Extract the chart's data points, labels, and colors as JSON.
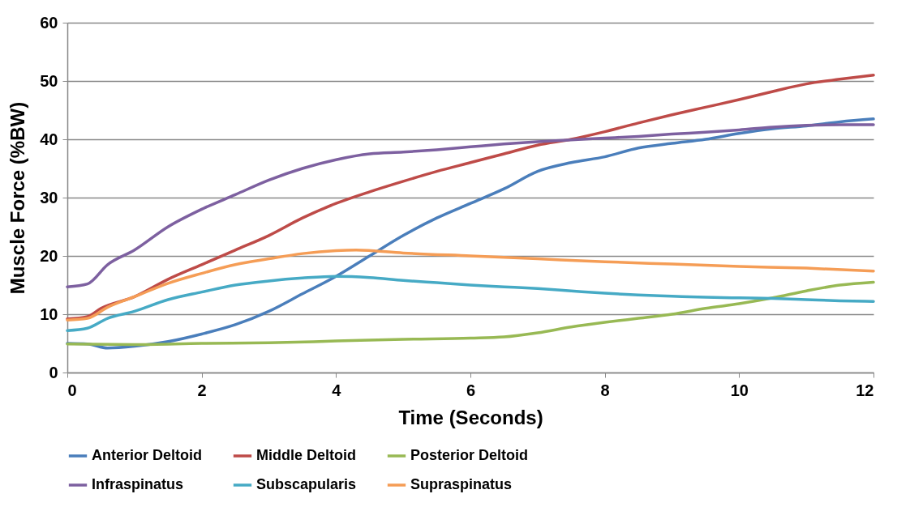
{
  "chart_data": {
    "type": "line",
    "xlabel": "Time (Seconds)",
    "ylabel": "Muscle Force (%BW)",
    "xlim": [
      0,
      12
    ],
    "xticks": [
      0,
      2,
      4,
      6,
      8,
      10,
      12
    ],
    "ylim": [
      0,
      60
    ],
    "yticks": [
      0,
      10,
      20,
      30,
      40,
      50,
      60
    ],
    "grid": "y",
    "legend": "bottom",
    "marker": "none",
    "line_style": "solid",
    "series": [
      {
        "name": "Anterior Deltoid",
        "color": "#4a7ebb",
        "x": [
          0,
          0.3,
          0.6,
          1,
          1.5,
          2,
          2.5,
          3,
          3.5,
          4,
          4.5,
          5,
          5.5,
          6,
          6.5,
          7,
          7.5,
          8,
          8.5,
          9,
          9.5,
          10,
          10.5,
          11,
          11.5,
          12
        ],
        "values": [
          5,
          4.9,
          4.2,
          4.5,
          5.3,
          6.6,
          8.2,
          10.5,
          13.5,
          16.5,
          20,
          23.5,
          26.5,
          29,
          31.5,
          34.5,
          36,
          37,
          38.5,
          39.3,
          40,
          41,
          41.8,
          42.3,
          43,
          43.5
        ]
      },
      {
        "name": "Middle Deltoid",
        "color": "#be4b48",
        "x": [
          0,
          0.3,
          0.5,
          1,
          1.5,
          2,
          2.5,
          3,
          3.5,
          4,
          4.5,
          5,
          5.5,
          6,
          6.5,
          7,
          7.5,
          8,
          8.5,
          9,
          9.5,
          10,
          10.5,
          11,
          11.5,
          12
        ],
        "values": [
          9.2,
          9.6,
          11,
          13,
          16,
          18.5,
          21,
          23.5,
          26.5,
          29,
          31,
          32.8,
          34.5,
          36,
          37.5,
          39,
          40,
          41.3,
          42.8,
          44.2,
          45.5,
          46.8,
          48.2,
          49.5,
          50.3,
          51
        ]
      },
      {
        "name": "Posterior Deltoid",
        "color": "#98b954",
        "x": [
          0,
          1,
          2,
          3,
          4,
          5,
          6,
          6.5,
          7,
          7.5,
          8,
          8.5,
          9,
          9.5,
          10,
          10.5,
          11,
          11.5,
          12
        ],
        "values": [
          4.9,
          4.8,
          5,
          5.1,
          5.4,
          5.7,
          5.9,
          6.1,
          6.8,
          7.8,
          8.6,
          9.3,
          10,
          11,
          11.8,
          12.8,
          14,
          15,
          15.5
        ]
      },
      {
        "name": "Infraspinatus",
        "color": "#7d60a0",
        "x": [
          0,
          0.3,
          0.6,
          1,
          1.5,
          2,
          2.5,
          3,
          3.5,
          4,
          4.5,
          5,
          5.5,
          6,
          6.5,
          7,
          7.5,
          8,
          8.5,
          9,
          9.5,
          10,
          10.5,
          11,
          11.5,
          12
        ],
        "values": [
          14.7,
          15.2,
          18.5,
          21,
          25,
          28,
          30.5,
          33,
          35,
          36.5,
          37.5,
          37.8,
          38.2,
          38.7,
          39.2,
          39.6,
          39.9,
          40.2,
          40.5,
          40.9,
          41.2,
          41.6,
          42.1,
          42.4,
          42.5,
          42.5
        ]
      },
      {
        "name": "Subscapularis",
        "color": "#46aac5",
        "x": [
          0,
          0.3,
          0.6,
          1,
          1.5,
          2,
          2.5,
          3,
          3.5,
          4,
          4.5,
          5,
          5.5,
          6,
          6.5,
          7,
          7.5,
          8,
          8.5,
          9,
          9.5,
          10,
          10.5,
          11,
          11.5,
          12
        ],
        "values": [
          7.2,
          7.6,
          9.3,
          10.5,
          12.5,
          13.8,
          15,
          15.7,
          16.2,
          16.5,
          16.3,
          15.8,
          15.4,
          15,
          14.7,
          14.4,
          14,
          13.6,
          13.3,
          13.1,
          12.9,
          12.8,
          12.7,
          12.5,
          12.3,
          12.2
        ]
      },
      {
        "name": "Supraspinatus",
        "color": "#f59d56",
        "x": [
          0,
          0.3,
          0.6,
          1,
          1.5,
          2,
          2.5,
          3,
          3.5,
          4,
          4.3,
          5,
          6,
          7,
          8,
          9,
          10,
          11,
          12
        ],
        "values": [
          9,
          9.3,
          11.2,
          13,
          15.3,
          17,
          18.5,
          19.5,
          20.4,
          20.9,
          21,
          20.5,
          20,
          19.5,
          19,
          18.6,
          18.2,
          17.9,
          17.4
        ]
      }
    ]
  }
}
